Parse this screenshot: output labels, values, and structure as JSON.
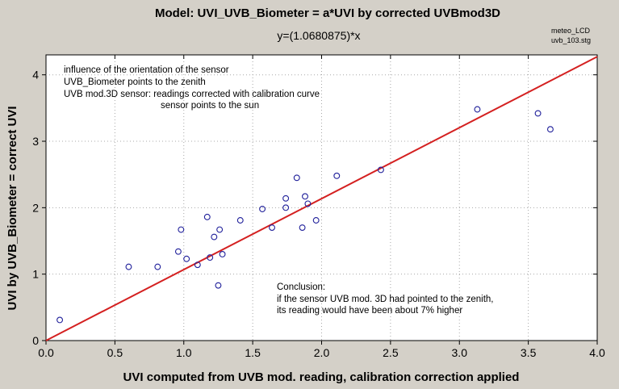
{
  "chart_data": {
    "type": "scatter",
    "title": "Model: UVI_UVB_Biometer = a*UVI by corrected UVBmod3D",
    "subtitle": "y=(1.0680875)*x",
    "corner_notes": [
      "meteo_LCD",
      "uvb_103.stg"
    ],
    "xlabel": "UVI computed from UVB mod. reading, calibration correction applied",
    "ylabel": "UVI by UVB_Biometer = correct UVI",
    "xlim": [
      0.0,
      4.0
    ],
    "ylim": [
      0,
      4.3
    ],
    "x_ticks": [
      "0.0",
      "0.5",
      "1.0",
      "1.5",
      "2.0",
      "2.5",
      "3.0",
      "3.5",
      "4.0"
    ],
    "y_ticks": [
      "0",
      "1",
      "2",
      "3",
      "4"
    ],
    "grid": true,
    "fit": {
      "slope": 1.0680875,
      "intercept": 0
    },
    "annotations": {
      "top_left": [
        "influence of the orientation of the sensor",
        "UVB_Biometer points to the zenith",
        "UVB mod.3D sensor: readings corrected with calibration curve",
        "sensor points to the sun"
      ],
      "bottom_right": [
        "Conclusion:",
        "if the sensor UVB mod. 3D had pointed to the zenith,",
        "its reading would have been about 7% higher"
      ]
    },
    "points": [
      {
        "x": 0.1,
        "y": 0.31
      },
      {
        "x": 0.6,
        "y": 1.11
      },
      {
        "x": 0.81,
        "y": 1.11
      },
      {
        "x": 0.96,
        "y": 1.34
      },
      {
        "x": 0.98,
        "y": 1.67
      },
      {
        "x": 1.02,
        "y": 1.23
      },
      {
        "x": 1.1,
        "y": 1.14
      },
      {
        "x": 1.17,
        "y": 1.86
      },
      {
        "x": 1.19,
        "y": 1.25
      },
      {
        "x": 1.22,
        "y": 1.56
      },
      {
        "x": 1.25,
        "y": 0.83
      },
      {
        "x": 1.26,
        "y": 1.67
      },
      {
        "x": 1.28,
        "y": 1.3
      },
      {
        "x": 1.41,
        "y": 1.81
      },
      {
        "x": 1.57,
        "y": 1.98
      },
      {
        "x": 1.64,
        "y": 1.7
      },
      {
        "x": 1.74,
        "y": 2.14
      },
      {
        "x": 1.74,
        "y": 2.0
      },
      {
        "x": 1.82,
        "y": 2.45
      },
      {
        "x": 1.86,
        "y": 1.7
      },
      {
        "x": 1.88,
        "y": 2.17
      },
      {
        "x": 1.9,
        "y": 2.06
      },
      {
        "x": 1.96,
        "y": 1.81
      },
      {
        "x": 2.11,
        "y": 2.48
      },
      {
        "x": 2.43,
        "y": 2.57
      },
      {
        "x": 3.13,
        "y": 3.48
      },
      {
        "x": 3.57,
        "y": 3.42
      },
      {
        "x": 3.66,
        "y": 3.18
      }
    ]
  }
}
